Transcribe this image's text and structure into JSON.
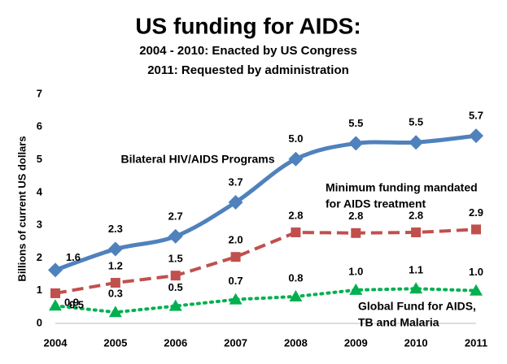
{
  "chart_data": {
    "type": "line",
    "title": "US funding for AIDS:",
    "subtitle": [
      "2004 - 2010: Enacted by US Congress",
      "2011: Requested by administration"
    ],
    "y_label": "Billions of current US dollars",
    "categories": [
      "2004",
      "2005",
      "2006",
      "2007",
      "2008",
      "2009",
      "2010",
      "2011"
    ],
    "series": [
      {
        "name": "Bilateral HIV/AIDS Programs",
        "color": "#4f81bd",
        "marker": "diamond",
        "dash": "solid",
        "values": [
          1.63,
          2.27,
          2.66,
          3.7,
          5.02,
          5.5,
          5.53,
          5.73
        ],
        "value_labels": [
          "1.6",
          "2.3",
          "2.7",
          "3.7",
          "5.0",
          "5.5",
          "5.5",
          "5.7"
        ]
      },
      {
        "name": [
          "Minimum funding mandated",
          "for AIDS treatment"
        ],
        "color": "#c0504d",
        "marker": "square",
        "dash": "dashed",
        "values": [
          0.92,
          1.24,
          1.46,
          2.03,
          2.78,
          2.76,
          2.78,
          2.87
        ],
        "value_labels": [
          "0.9",
          "1.2",
          "1.5",
          "2.0",
          "2.8",
          "2.8",
          "2.8",
          "2.9"
        ]
      },
      {
        "name": [
          "Global Fund for AIDS,",
          "TB and Malaria"
        ],
        "color": "#00b050",
        "marker": "triangle",
        "dash": "dotted",
        "values": [
          0.54,
          0.34,
          0.53,
          0.73,
          0.82,
          1.02,
          1.06,
          1.0
        ],
        "value_labels": [
          "0.5",
          "0.3",
          "0.5",
          "0.7",
          "0.8",
          "1.0",
          "1.1",
          "1.0"
        ]
      }
    ],
    "ylim": [
      0,
      7
    ],
    "yticks": [
      0,
      1,
      2,
      3,
      4,
      5,
      6,
      7
    ],
    "grid": false
  }
}
